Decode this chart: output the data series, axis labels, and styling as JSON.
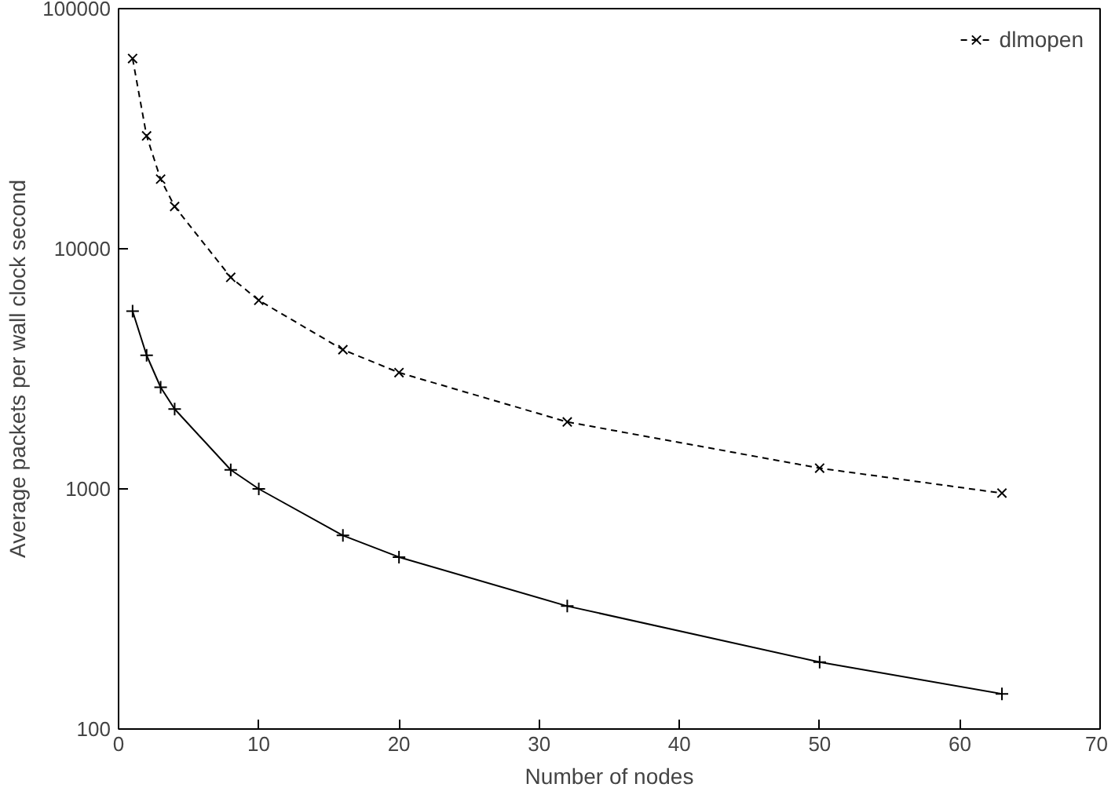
{
  "chart_data": {
    "type": "line",
    "xlabel": "Number of nodes",
    "ylabel": "Average packets per wall clock second",
    "x": [
      1,
      2,
      3,
      4,
      8,
      10,
      16,
      20,
      32,
      50,
      63
    ],
    "series": [
      {
        "color": "#000000",
        "marker": "cross",
        "line_style": "solid",
        "values": [
          5500,
          3600,
          2650,
          2150,
          1200,
          1000,
          640,
          520,
          325,
          190,
          140
        ]
      },
      {
        "name": "dlmopen",
        "color": "#000000",
        "marker": "x",
        "line_style": "dashed",
        "values": [
          62000,
          29500,
          19500,
          15000,
          7600,
          6100,
          3800,
          3050,
          1900,
          1220,
          960
        ]
      }
    ],
    "xlim": [
      0,
      70
    ],
    "xticks": [
      0,
      10,
      20,
      30,
      40,
      50,
      60,
      70
    ],
    "ylim": [
      100,
      100000
    ],
    "yticks": [
      100,
      1000,
      10000,
      100000
    ],
    "log": "y",
    "grid": false,
    "legend": "top right"
  }
}
